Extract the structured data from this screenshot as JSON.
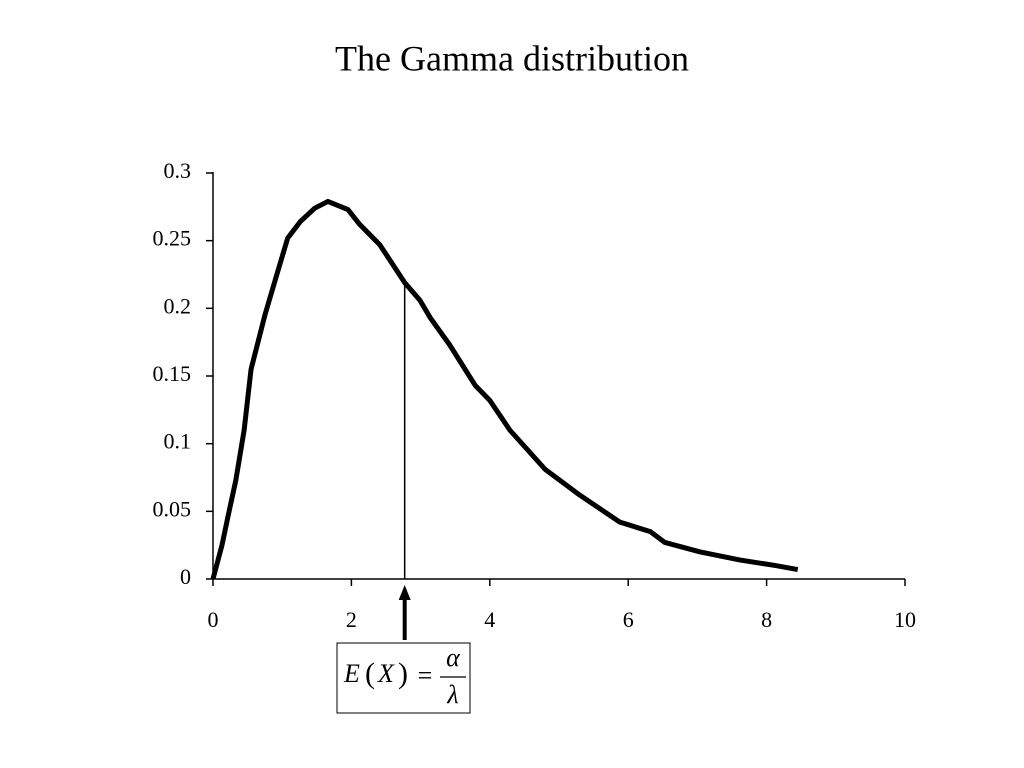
{
  "chart_data": {
    "type": "line",
    "title": "The Gamma distribution",
    "x": [
      0,
      0.13,
      0.22,
      0.33,
      0.45,
      0.55,
      0.75,
      0.94,
      1.08,
      1.26,
      1.47,
      1.66,
      1.95,
      2.12,
      2.41,
      2.77,
      2.99,
      3.14,
      3.42,
      3.79,
      4.0,
      4.29,
      4.8,
      5.3,
      5.88,
      6.32,
      6.53,
      7.04,
      7.62,
      8.12,
      8.45
    ],
    "values": [
      0,
      0.025,
      0.047,
      0.073,
      0.11,
      0.155,
      0.195,
      0.228,
      0.252,
      0.264,
      0.274,
      0.279,
      0.273,
      0.262,
      0.247,
      0.219,
      0.206,
      0.193,
      0.173,
      0.143,
      0.132,
      0.11,
      0.081,
      0.062,
      0.042,
      0.035,
      0.027,
      0.02,
      0.014,
      0.01,
      0.007
    ],
    "color": "#000000",
    "xlim": [
      0,
      10
    ],
    "xticks": [
      0,
      2,
      4,
      6,
      8,
      10
    ],
    "ylim": [
      0,
      0.3
    ],
    "yticks": [
      0,
      0.05,
      0.1,
      0.15,
      0.2,
      0.25,
      0.3
    ],
    "grid": false,
    "annotation": {
      "x": 2.77,
      "y": 0.219,
      "lhs_function": "E",
      "lhs_argument": "X",
      "equals": "=",
      "numerator": "α",
      "denominator": "λ"
    }
  }
}
